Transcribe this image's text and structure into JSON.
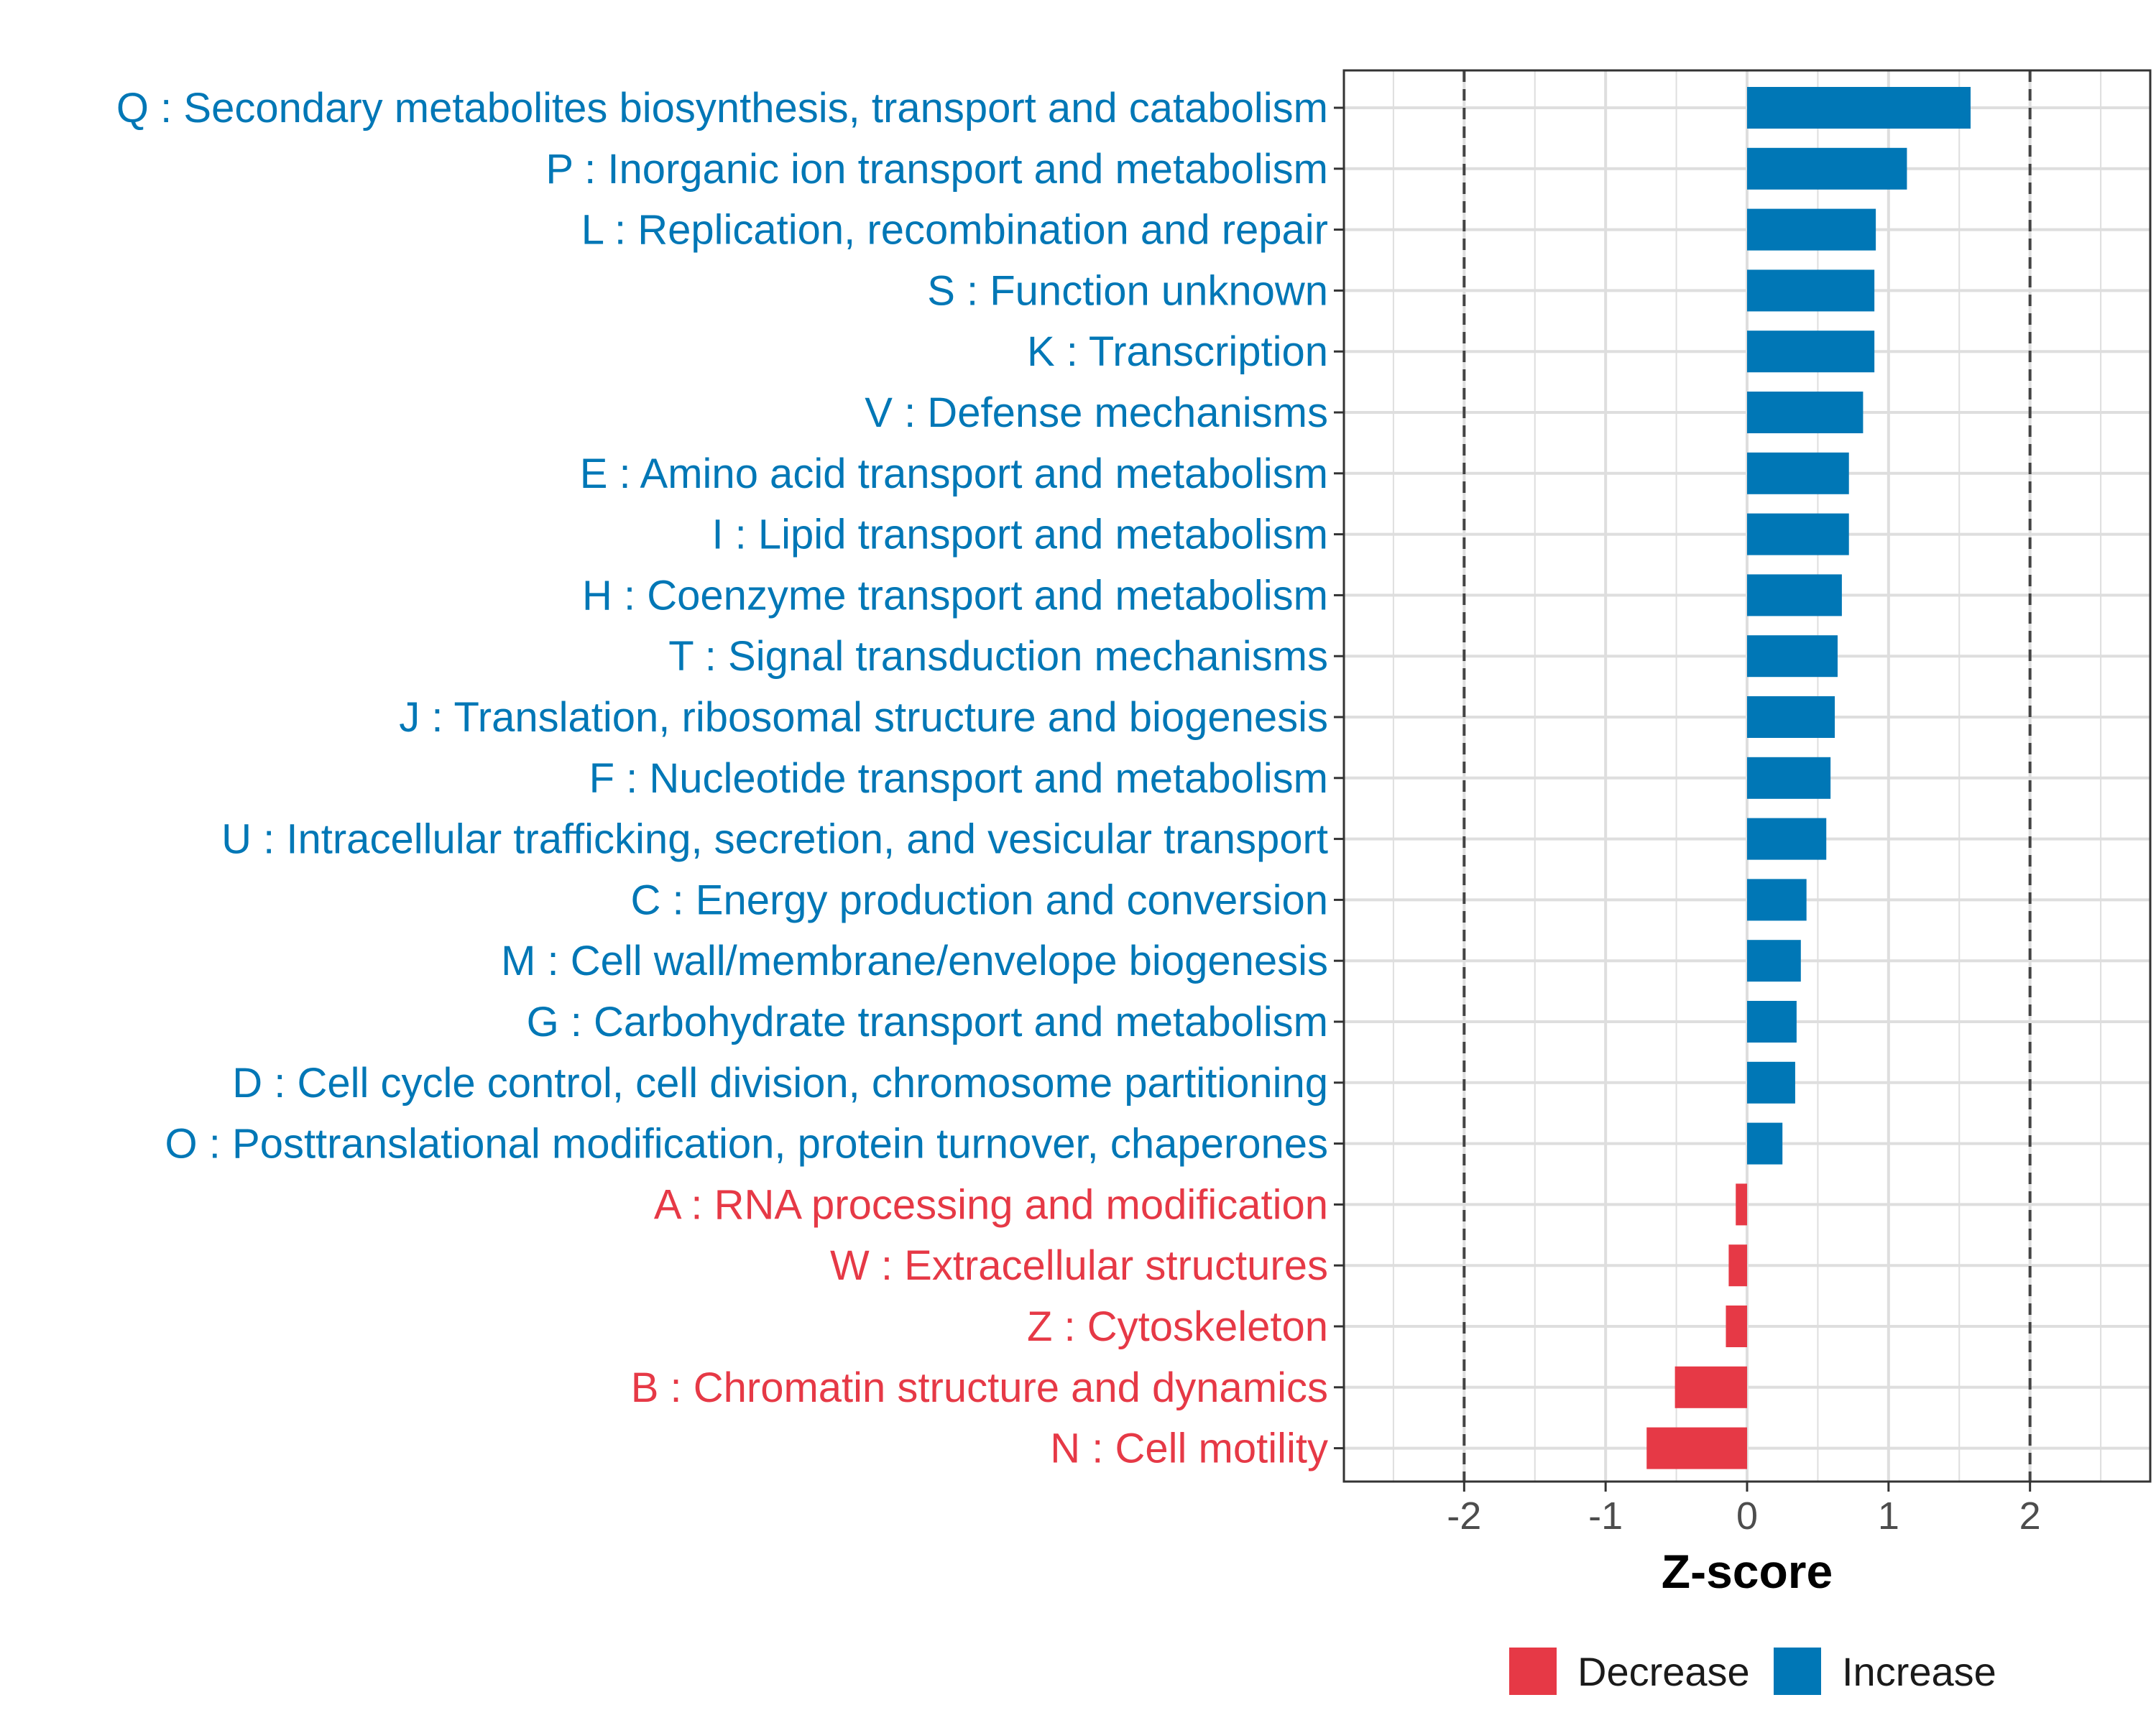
{
  "chart_data": {
    "type": "bar",
    "orientation": "horizontal",
    "xlabel": "Z-score",
    "ylabel": "",
    "xlim": [
      -2.85,
      2.85
    ],
    "x_ticks": [
      -2,
      -1,
      0,
      1,
      2
    ],
    "x_tick_labels": [
      "-2",
      "-1",
      "0",
      "1",
      "2"
    ],
    "reference_lines": [
      -2,
      2
    ],
    "grid": true,
    "colors": {
      "Decrease": "#E63946",
      "Increase": "#0077B6"
    },
    "legend": {
      "position": "bottom",
      "entries": [
        {
          "label": "Decrease",
          "color": "#E63946"
        },
        {
          "label": "Increase",
          "color": "#0077B6"
        }
      ]
    },
    "categories": [
      "Q : Secondary metabolites biosynthesis, transport and catabolism",
      "P : Inorganic ion transport and metabolism",
      "L : Replication, recombination and repair",
      "S : Function unknown",
      "K : Transcription",
      "V : Defense mechanisms",
      "E : Amino acid transport and metabolism",
      "I : Lipid transport and metabolism",
      "H : Coenzyme transport and metabolism",
      "T : Signal transduction mechanisms",
      "J : Translation, ribosomal structure and biogenesis",
      "F : Nucleotide transport and metabolism",
      "U : Intracellular trafficking, secretion, and vesicular transport",
      "C : Energy production and conversion",
      "M : Cell wall/membrane/envelope biogenesis",
      "G : Carbohydrate transport and metabolism",
      "D : Cell cycle control, cell division, chromosome partitioning",
      "O : Posttranslational modification, protein turnover, chaperones",
      "A : RNA processing and modification",
      "W : Extracellular structures",
      "Z : Cytoskeleton",
      "B : Chromatin structure and dynamics",
      "N : Cell motility"
    ],
    "values": [
      1.58,
      1.13,
      0.91,
      0.9,
      0.9,
      0.82,
      0.72,
      0.72,
      0.67,
      0.64,
      0.62,
      0.59,
      0.56,
      0.42,
      0.38,
      0.35,
      0.34,
      0.25,
      -0.08,
      -0.13,
      -0.15,
      -0.51,
      -0.71
    ],
    "groups": [
      "Increase",
      "Increase",
      "Increase",
      "Increase",
      "Increase",
      "Increase",
      "Increase",
      "Increase",
      "Increase",
      "Increase",
      "Increase",
      "Increase",
      "Increase",
      "Increase",
      "Increase",
      "Increase",
      "Increase",
      "Increase",
      "Decrease",
      "Decrease",
      "Decrease",
      "Decrease",
      "Decrease"
    ]
  }
}
